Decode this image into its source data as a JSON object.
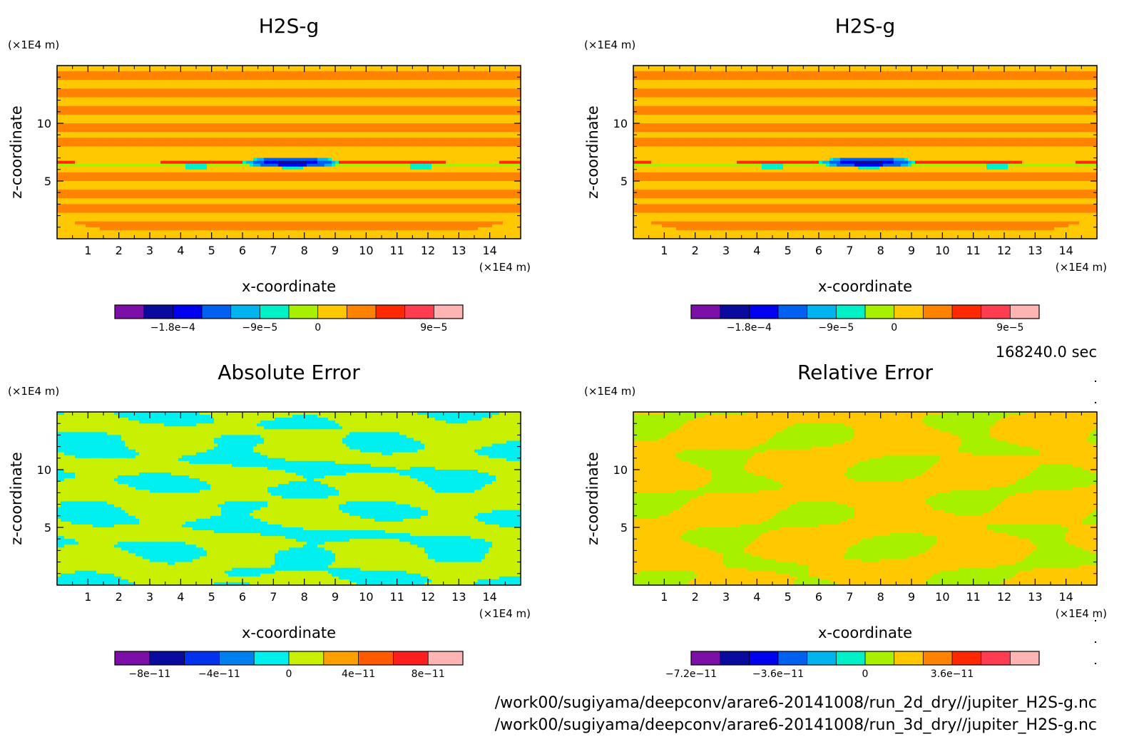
{
  "meta": {
    "time_label": "168240.0 sec",
    "file_paths": [
      "/work00/sugiyama/deepconv/arare6-20141008/run_2d_dry//jupiter_H2S-g.nc",
      "/work00/sugiyama/deepconv/arare6-20141008/run_3d_dry//jupiter_H2S-g.nc"
    ]
  },
  "chart_data": [
    {
      "type": "heatmap",
      "title": "H2S-g",
      "xlabel": "x-coordinate",
      "ylabel": "z-coordinate",
      "x_unit": "(×1E4 m)",
      "y_unit": "(×1E4 m)",
      "xlim": [
        0,
        15
      ],
      "ylim": [
        0,
        15
      ],
      "x_ticks": [
        1,
        2,
        3,
        4,
        5,
        6,
        7,
        8,
        9,
        10,
        11,
        12,
        13,
        14
      ],
      "y_ticks": [
        5,
        10
      ],
      "pattern": "layered",
      "colorbar": {
        "colors": [
          "#7b0fa8",
          "#0a0a9e",
          "#0000f0",
          "#0060f0",
          "#00b4f0",
          "#00f0c8",
          "#a6f000",
          "#ffc800",
          "#ff8200",
          "#ff2800",
          "#ff3c50",
          "#ffb4b4"
        ],
        "labels": [
          "−1.8e−4",
          "−9e−5",
          "0",
          "9e−5"
        ],
        "label_positions": [
          2,
          5,
          7,
          11
        ]
      }
    },
    {
      "type": "heatmap",
      "title": "H2S-g",
      "xlabel": "x-coordinate",
      "ylabel": "z-coordinate",
      "x_unit": "(×1E4 m)",
      "y_unit": "(×1E4 m)",
      "xlim": [
        0,
        15
      ],
      "ylim": [
        0,
        15
      ],
      "x_ticks": [
        1,
        2,
        3,
        4,
        5,
        6,
        7,
        8,
        9,
        10,
        11,
        12,
        13,
        14
      ],
      "y_ticks": [
        5,
        10
      ],
      "pattern": "layered",
      "colorbar": {
        "colors": [
          "#7b0fa8",
          "#0a0a9e",
          "#0000f0",
          "#0060f0",
          "#00b4f0",
          "#00f0c8",
          "#a6f000",
          "#ffc800",
          "#ff8200",
          "#ff2800",
          "#ff3c50",
          "#ffb4b4"
        ],
        "labels": [
          "−1.8e−4",
          "−9e−5",
          "0",
          "9e−5"
        ],
        "label_positions": [
          2,
          5,
          7,
          11
        ]
      }
    },
    {
      "type": "heatmap",
      "title": "Absolute Error",
      "xlabel": "x-coordinate",
      "ylabel": "z-coordinate",
      "x_unit": "(×1E4 m)",
      "y_unit": "(×1E4 m)",
      "xlim": [
        0,
        15
      ],
      "ylim": [
        0,
        15
      ],
      "x_ticks": [
        1,
        2,
        3,
        4,
        5,
        6,
        7,
        8,
        9,
        10,
        11,
        12,
        13,
        14
      ],
      "y_ticks": [
        5,
        10
      ],
      "pattern": "abs",
      "colorbar": {
        "colors": [
          "#7b0fa8",
          "#0a0a9e",
          "#0032f0",
          "#0080f0",
          "#00f0f0",
          "#c8f000",
          "#ffa000",
          "#ff5a00",
          "#ff1e1e",
          "#ffb4b4"
        ],
        "labels": [
          "−8e−11",
          "−4e−11",
          "0",
          "4e−11",
          "8e−11"
        ],
        "label_positions": [
          1,
          3,
          5,
          7,
          9
        ]
      }
    },
    {
      "type": "heatmap",
      "title": "Relative Error",
      "xlabel": "x-coordinate",
      "ylabel": "z-coordinate",
      "x_unit": "(×1E4 m)",
      "y_unit": "(×1E4 m)",
      "xlim": [
        0,
        15
      ],
      "ylim": [
        0,
        15
      ],
      "x_ticks": [
        1,
        2,
        3,
        4,
        5,
        6,
        7,
        8,
        9,
        10,
        11,
        12,
        13,
        14
      ],
      "y_ticks": [
        5,
        10
      ],
      "pattern": "rel",
      "colorbar": {
        "colors": [
          "#7b0fa8",
          "#0a0a9e",
          "#0000f0",
          "#0060f0",
          "#00b4f0",
          "#00f0c8",
          "#a6f000",
          "#ffc800",
          "#ff8200",
          "#ff2800",
          "#ff3c50",
          "#ffb4b4"
        ],
        "labels": [
          "−7.2e−11",
          "−3.6e−11",
          "0",
          "3.6e−11"
        ],
        "label_positions": [
          0,
          3,
          6,
          9
        ]
      }
    }
  ]
}
